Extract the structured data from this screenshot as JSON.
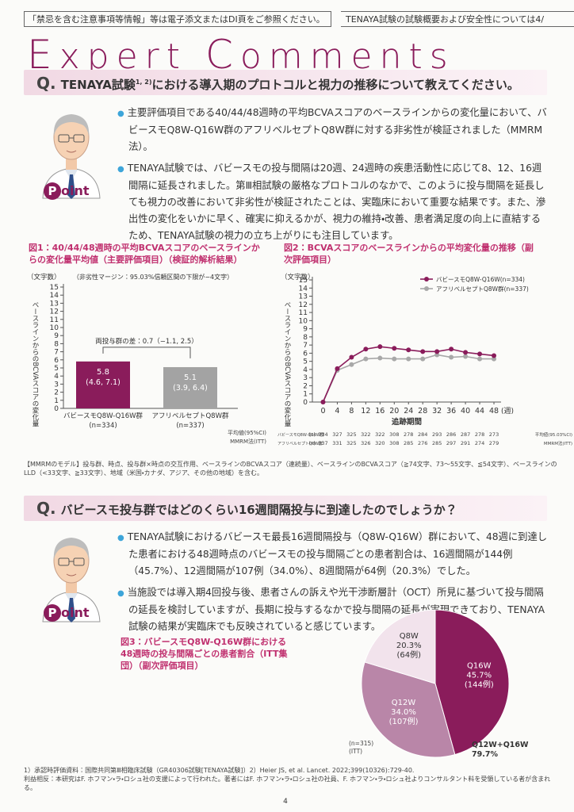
{
  "header": {
    "notice": "「禁忌を含む注意事項等情報」等は電子添文またはDI頁をご参照ください。",
    "reference": "TENAYA試験の試験概要および安全性については4/"
  },
  "title": {
    "first": "E",
    "first_rest": "xpert",
    "second": "C",
    "second_rest": "omments"
  },
  "point": {
    "initial": "P",
    "rest": "oint"
  },
  "section1": {
    "q": "Q.",
    "question": "TENAYA試験",
    "question_sup": "1, 2)",
    "question_rest": "における導入期のプロトコルと視力の推移について教えてください。",
    "bullets": [
      "主要評価項目である40/44/48週時の平均BCVAスコアのベースラインからの変化量において、バビースモQ8W-Q16W群のアフリベルセプトQ8W群に対する非劣性が検証されました（MMRM法）。",
      "TENAYA試験では、バビースモの投与間隔は20週、24週時の疾患活動性に応じて8、12、16週間隔に延長されました。第Ⅲ相試験の厳格なプロトコルのなかで、このように投与間隔を延長しても視力の改善において非劣性が検証されたことは、実臨床において重要な結果です。また、滲出性の変化をいかに早く、確実に抑えるかが、視力の維持・改善、患者満足度の向上に直結するため、TENAYA試験の視力の立ち上がりにも注目しています。"
    ],
    "model_note": "【MMRMのモデル】投与群、時点、投与群×時点の交互作用、ベースラインのBCVAスコア（連続量）、ベースラインのBCVAスコア（≧74文字、73～55文字、≦54文字）、ベースラインのLLD（<33文字、≧33文字）、地域（米国・カナダ、アジア、その他の地域）を含む。"
  },
  "section2": {
    "q": "Q.",
    "question": "バビースモ投与群ではどのくらい16週間隔投与に到達したのでしょうか？",
    "bullets": [
      "TENAYA試験におけるバビースモ最長16週間隔投与（Q8W-Q16W）群において、48週に到達した患者における48週時点のバビースモの投与間隔ごとの患者割合は、16週間隔が144例（45.7%）、12週間隔が107例（34.0%）、8週間隔が64例（20.3%）でした。",
      "当施設では導入期4回投与後、患者さんの訴えや光干渉断層計（OCT）所見に基づいて投与間隔の延長を検討していますが、長期に投与するなかで投与間隔の延長が実現できており、TENAYA試験の結果が実臨床でも反映されていると感じています。"
    ]
  },
  "chart_data": [
    {
      "type": "bar",
      "title": "図1：40/44/48週時の平均BCVAスコアのベースラインからの変化量平均値（主要評価項目）（検証的解析結果）",
      "y_unit": "（文字数）",
      "margin_note": "（非劣性マージン：95.03%信頼区間の下限が−4文字）",
      "ylabel": "ベースラインからのBCVAスコアの変化量",
      "categories": [
        "バビースモQ8W-Q16W群",
        "アフリベルセプトQ8W群"
      ],
      "category_n": [
        "(n=334)",
        "(n=337)"
      ],
      "values": [
        5.8,
        5.1
      ],
      "ci_labels": [
        "(4.6, 7.1)",
        "(3.9, 6.4)"
      ],
      "colors": [
        "#8a1c5b",
        "#a3a3a3"
      ],
      "annotation": "両投与群の差：0.7（−1.1, 2.5）",
      "notes": [
        "平均値(95%CI)",
        "MMRM法(ITT)"
      ],
      "ylim": [
        0,
        15
      ],
      "yticks": [
        0,
        1,
        2,
        3,
        4,
        5,
        6,
        7,
        8,
        9,
        10,
        11,
        12,
        13,
        14,
        15
      ]
    },
    {
      "type": "line",
      "title": "図2：BCVAスコアのベースラインからの平均変化量の推移（副次評価項目）",
      "y_unit": "（文字数）",
      "ylabel": "ベースラインからのBCVAスコアの変化量",
      "xlabel": "追跡期間",
      "x_unit": "(週)",
      "x": [
        0,
        4,
        8,
        12,
        16,
        20,
        24,
        28,
        32,
        36,
        40,
        44,
        48
      ],
      "series": [
        {
          "name": "バビースモQ8W-Q16W(n=334)",
          "row_label": "バビースモQ8W-Q16W群",
          "color": "#8a1c5b",
          "values": [
            0,
            4.1,
            5.5,
            6.5,
            6.8,
            6.6,
            6.4,
            6.2,
            6.2,
            6.5,
            6.1,
            5.9,
            5.7
          ],
          "n_at_risk": [
            334,
            327,
            325,
            322,
            322,
            308,
            278,
            284,
            293,
            286,
            287,
            278,
            273
          ]
        },
        {
          "name": "アフリベルセプトQ8W群(n=337)",
          "row_label": "アフリベルセプトQ8W群",
          "color": "#a8a8a8",
          "values": [
            0,
            3.9,
            4.6,
            5.3,
            5.4,
            5.3,
            5.3,
            5.3,
            5.8,
            5.5,
            5.6,
            5.3,
            5.3
          ],
          "n_at_risk": [
            337,
            331,
            325,
            326,
            320,
            308,
            285,
            276,
            285,
            297,
            291,
            274,
            279
          ]
        }
      ],
      "n_label": "(n)",
      "notes": [
        "平均値(95.03%CI)",
        "MMRM法(ITT)"
      ],
      "xlim": [
        -3,
        50
      ],
      "ylim": [
        0,
        15
      ],
      "yticks": [
        0,
        1,
        2,
        3,
        4,
        5,
        6,
        7,
        8,
        9,
        10,
        11,
        12,
        13,
        14,
        15
      ]
    },
    {
      "type": "pie",
      "title": "図3：バビースモQ8W-Q16W群における48週時の投与間隔ごとの患者割合（ITT集団）（副次評価項目）",
      "categories": [
        "Q16W",
        "Q12W",
        "Q8W"
      ],
      "values": [
        45.7,
        34.0,
        20.3
      ],
      "value_labels": [
        "45.7%",
        "34.0%",
        "20.3%"
      ],
      "count_labels": [
        "(144例)",
        "(107例)",
        "(64例)"
      ],
      "colors": [
        "#8a1c5b",
        "#b986a8",
        "#f2e3ec"
      ],
      "notes": [
        "(n=315)",
        "(ITT)"
      ],
      "annotation": "Q12W+Q16W",
      "annotation_value": 79.7,
      "annotation_label": "79.7%"
    }
  ],
  "footnotes": [
    "1）承認時評価資料：国際共同第Ⅲ相臨床試験（GR40306試験[TENAYA試験]）2）Heier JS, et al. Lancet. 2022;399(10326):729-40.",
    "利益相反：本研究はF. ホフマン・ラ・ロシュ社の支援によって行われた。著者にはF. ホフマン・ラ・ロシュ社の社員、F. ホフマン・ラ・ロシュ社よりコンサルタント料を受領している者が含まれる。"
  ],
  "page_number": "4"
}
